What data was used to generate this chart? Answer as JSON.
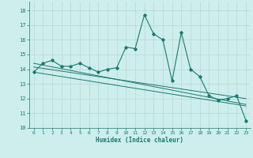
{
  "xlabel": "Humidex (Indice chaleur)",
  "background_color": "#cdeeed",
  "grid_color": "#b8d8d4",
  "line_color": "#1a7a6e",
  "xlim": [
    -0.5,
    23.5
  ],
  "ylim": [
    10,
    18.6
  ],
  "yticks": [
    10,
    11,
    12,
    13,
    14,
    15,
    16,
    17,
    18
  ],
  "xticks": [
    0,
    1,
    2,
    3,
    4,
    5,
    6,
    7,
    8,
    9,
    10,
    11,
    12,
    13,
    14,
    15,
    16,
    17,
    18,
    19,
    20,
    21,
    22,
    23
  ],
  "main_x": [
    0,
    1,
    2,
    3,
    4,
    5,
    6,
    7,
    8,
    9,
    10,
    11,
    12,
    13,
    14,
    15,
    16,
    17,
    18,
    19,
    20,
    21,
    22,
    23
  ],
  "main_y": [
    13.8,
    14.4,
    14.6,
    14.2,
    14.2,
    14.4,
    14.1,
    13.8,
    14.0,
    14.1,
    15.5,
    15.4,
    17.7,
    16.4,
    16.0,
    13.2,
    16.5,
    14.0,
    13.5,
    12.2,
    11.9,
    12.0,
    12.2,
    10.5
  ],
  "line1_x": [
    0,
    23
  ],
  "line1_y": [
    14.4,
    11.6
  ],
  "line2_x": [
    0,
    23
  ],
  "line2_y": [
    14.15,
    12.0
  ],
  "line3_x": [
    0,
    23
  ],
  "line3_y": [
    13.8,
    11.5
  ]
}
